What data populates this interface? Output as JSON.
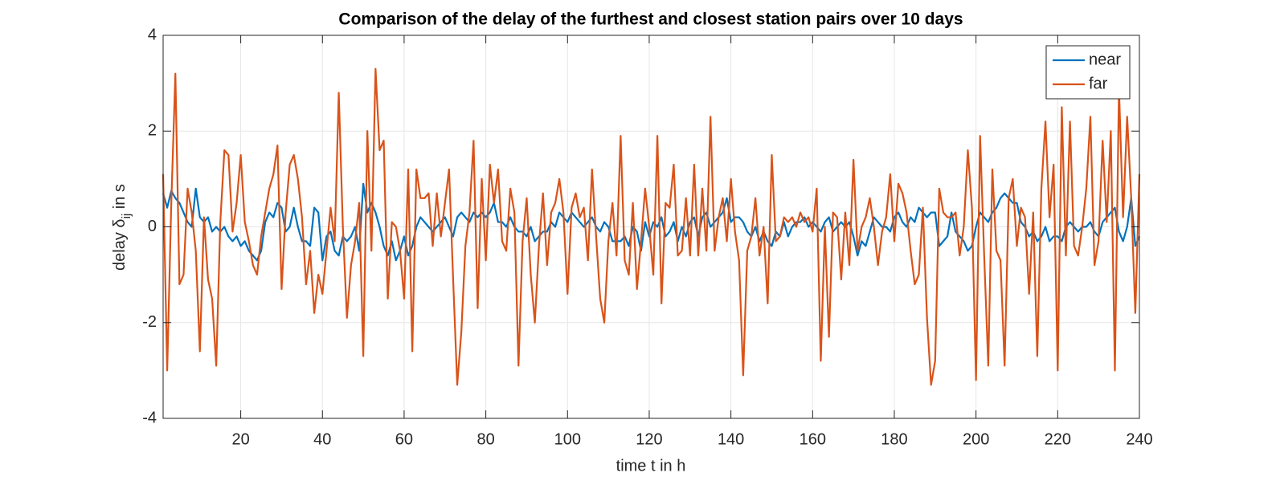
{
  "chart_data": {
    "type": "line",
    "title": "Comparison of the delay of the furthest and closest station pairs over 10 days",
    "xlabel": "time t in h",
    "ylabel_parts": [
      "delay δ",
      "ij",
      " in s"
    ],
    "xlim": [
      1,
      240
    ],
    "ylim": [
      -4,
      4
    ],
    "xticks": [
      20,
      40,
      60,
      80,
      100,
      120,
      140,
      160,
      180,
      200,
      220,
      240
    ],
    "yticks": [
      -4,
      -2,
      0,
      2,
      4
    ],
    "grid": true,
    "legend": "northeast",
    "x": [
      1,
      2,
      3,
      4,
      5,
      6,
      7,
      8,
      9,
      10,
      11,
      12,
      13,
      14,
      15,
      16,
      17,
      18,
      19,
      20,
      21,
      22,
      23,
      24,
      25,
      26,
      27,
      28,
      29,
      30,
      31,
      32,
      33,
      34,
      35,
      36,
      37,
      38,
      39,
      40,
      41,
      42,
      43,
      44,
      45,
      46,
      47,
      48,
      49,
      50,
      51,
      52,
      53,
      54,
      55,
      56,
      57,
      58,
      59,
      60,
      61,
      62,
      63,
      64,
      65,
      66,
      67,
      68,
      69,
      70,
      71,
      72,
      73,
      74,
      75,
      76,
      77,
      78,
      79,
      80,
      81,
      82,
      83,
      84,
      85,
      86,
      87,
      88,
      89,
      90,
      91,
      92,
      93,
      94,
      95,
      96,
      97,
      98,
      99,
      100,
      101,
      102,
      103,
      104,
      105,
      106,
      107,
      108,
      109,
      110,
      111,
      112,
      113,
      114,
      115,
      116,
      117,
      118,
      119,
      120,
      121,
      122,
      123,
      124,
      125,
      126,
      127,
      128,
      129,
      130,
      131,
      132,
      133,
      134,
      135,
      136,
      137,
      138,
      139,
      140,
      141,
      142,
      143,
      144,
      145,
      146,
      147,
      148,
      149,
      150,
      151,
      152,
      153,
      154,
      155,
      156,
      157,
      158,
      159,
      160,
      161,
      162,
      163,
      164,
      165,
      166,
      167,
      168,
      169,
      170,
      171,
      172,
      173,
      174,
      175,
      176,
      177,
      178,
      179,
      180,
      181,
      182,
      183,
      184,
      185,
      186,
      187,
      188,
      189,
      190,
      191,
      192,
      193,
      194,
      195,
      196,
      197,
      198,
      199,
      200,
      201,
      202,
      203,
      204,
      205,
      206,
      207,
      208,
      209,
      210,
      211,
      212,
      213,
      214,
      215,
      216,
      217,
      218,
      219,
      220,
      221,
      222,
      223,
      224,
      225,
      226,
      227,
      228,
      229,
      230,
      231,
      232,
      233,
      234,
      235,
      236,
      237,
      238,
      239,
      240
    ],
    "series": [
      {
        "name": "near",
        "color": "#0072BD",
        "values": [
          0.7,
          0.4,
          0.75,
          0.6,
          0.5,
          0.3,
          0.1,
          0.0,
          0.8,
          0.2,
          0.1,
          0.2,
          -0.1,
          0.0,
          -0.1,
          0.0,
          -0.2,
          -0.3,
          -0.2,
          -0.4,
          -0.3,
          -0.5,
          -0.6,
          -0.7,
          -0.5,
          0.1,
          0.3,
          0.2,
          0.5,
          0.4,
          -0.1,
          0.0,
          0.4,
          0.0,
          -0.3,
          -0.3,
          -0.4,
          0.4,
          0.3,
          -0.7,
          -0.2,
          -0.1,
          -0.5,
          -0.6,
          -0.2,
          -0.3,
          -0.2,
          0.0,
          -0.5,
          0.9,
          0.3,
          0.5,
          0.3,
          0.0,
          -0.4,
          -0.6,
          -0.3,
          -0.7,
          -0.5,
          -0.2,
          -0.6,
          -0.4,
          0.0,
          0.2,
          0.1,
          0.0,
          -0.1,
          0.0,
          0.1,
          0.2,
          0.0,
          -0.2,
          0.2,
          0.3,
          0.2,
          0.1,
          0.3,
          0.2,
          0.3,
          0.2,
          0.3,
          0.5,
          0.1,
          0.1,
          0.0,
          0.2,
          0.0,
          -0.1,
          -0.1,
          -0.2,
          0.0,
          -0.3,
          -0.2,
          -0.1,
          -0.1,
          0.1,
          0.0,
          0.3,
          0.2,
          0.1,
          0.3,
          0.2,
          0.1,
          0.0,
          0.1,
          0.2,
          0.0,
          -0.1,
          0.1,
          0.0,
          -0.3,
          -0.3,
          -0.3,
          -0.2,
          -0.4,
          0.0,
          -0.1,
          -0.5,
          0.1,
          -0.2,
          0.1,
          0.0,
          0.2,
          -0.2,
          -0.1,
          0.1,
          -0.3,
          0.0,
          -0.2,
          0.1,
          0.2,
          -0.2,
          0.2,
          0.3,
          0.0,
          0.1,
          0.2,
          0.3,
          0.6,
          0.1,
          0.2,
          0.2,
          0.1,
          -0.1,
          -0.2,
          0.0,
          -0.3,
          -0.1,
          -0.3,
          -0.4,
          -0.1,
          -0.2,
          0.1,
          -0.2,
          0.0,
          0.1,
          0.1,
          0.2,
          0.0,
          0.1,
          0.0,
          -0.1,
          0.1,
          0.2,
          -0.1,
          0.0,
          0.1,
          0.0,
          0.1,
          -0.2,
          -0.6,
          -0.3,
          -0.4,
          -0.1,
          0.2,
          0.1,
          0.0,
          0.0,
          -0.1,
          0.2,
          0.3,
          0.1,
          0.0,
          0.2,
          0.1,
          0.4,
          0.3,
          0.2,
          0.3,
          0.3,
          -0.4,
          -0.3,
          -0.2,
          0.3,
          -0.1,
          -0.2,
          -0.3,
          -0.5,
          -0.4,
          0.0,
          0.3,
          0.2,
          0.1,
          0.3,
          0.4,
          0.6,
          0.7,
          0.6,
          0.5,
          0.5,
          0.1,
          0.0,
          -0.2,
          -0.1,
          -0.3,
          -0.2,
          0.0,
          -0.3,
          -0.2,
          -0.2,
          -0.3,
          0.0,
          0.1,
          0.0,
          -0.1,
          0.0,
          0.0,
          0.1,
          -0.1,
          -0.2,
          0.1,
          0.2,
          0.3,
          0.4,
          -0.1,
          -0.3,
          0.0,
          0.6,
          -0.4,
          -0.2
        ]
      },
      {
        "name": "far",
        "color": "#D95319",
        "values": [
          1.1,
          -3.0,
          0.5,
          3.2,
          -1.2,
          -1.0,
          0.8,
          0.3,
          -0.5,
          -2.6,
          0.2,
          -1.1,
          -1.5,
          -2.9,
          0.1,
          1.6,
          1.5,
          -0.1,
          0.5,
          1.5,
          0.1,
          -0.3,
          -0.8,
          -1.0,
          -0.2,
          0.3,
          0.8,
          1.1,
          1.7,
          -1.3,
          0.3,
          1.3,
          1.5,
          1.0,
          0.2,
          -1.2,
          -0.5,
          -1.8,
          -1.0,
          -1.4,
          -0.5,
          0.4,
          -0.3,
          2.8,
          0.0,
          -1.9,
          -0.8,
          -0.3,
          0.5,
          -2.7,
          2.0,
          -0.5,
          3.3,
          1.6,
          1.8,
          -1.5,
          0.1,
          0.0,
          -0.5,
          -1.5,
          1.2,
          -2.6,
          1.2,
          0.6,
          0.6,
          0.7,
          -0.4,
          0.7,
          -0.2,
          0.5,
          1.2,
          -1.1,
          -3.3,
          -2.2,
          -0.4,
          0.3,
          1.8,
          -1.7,
          1.0,
          -0.7,
          1.3,
          0.5,
          1.2,
          -0.3,
          -0.5,
          0.8,
          0.3,
          -2.9,
          -0.3,
          0.6,
          -1.0,
          -2.0,
          -0.4,
          0.7,
          -0.8,
          0.3,
          0.5,
          1.0,
          0.3,
          -1.4,
          0.4,
          0.7,
          0.2,
          0.4,
          -0.7,
          1.2,
          -0.2,
          -1.5,
          -2.0,
          -0.3,
          0.5,
          -0.6,
          1.9,
          -0.7,
          -1.0,
          0.5,
          -1.3,
          -0.3,
          0.8,
          0.0,
          -1.0,
          1.9,
          -1.6,
          0.5,
          0.4,
          1.3,
          -0.6,
          -0.5,
          0.6,
          -0.6,
          1.3,
          -0.6,
          0.8,
          -0.5,
          2.3,
          -0.5,
          0.2,
          0.6,
          -0.3,
          1.0,
          -0.1,
          -0.7,
          -3.1,
          -0.5,
          -0.2,
          0.6,
          -0.6,
          0.0,
          -1.6,
          1.5,
          -0.3,
          -0.2,
          0.2,
          0.1,
          0.2,
          0.0,
          0.3,
          0.1,
          0.2,
          -0.1,
          0.8,
          -2.8,
          0.0,
          -2.3,
          0.3,
          0.2,
          -1.1,
          0.3,
          -0.8,
          1.4,
          -0.5,
          0.0,
          0.2,
          0.6,
          0.0,
          -0.8,
          -0.1,
          0.2,
          1.1,
          -0.3,
          0.9,
          0.7,
          0.3,
          -0.5,
          -1.2,
          -1.0,
          0.4,
          -1.9,
          -3.3,
          -2.8,
          0.8,
          0.3,
          0.2,
          0.2,
          0.3,
          -0.6,
          0.0,
          1.6,
          0.4,
          -3.2,
          1.9,
          -0.6,
          -2.9,
          1.2,
          -0.5,
          -0.7,
          -2.9,
          0.6,
          1.0,
          -0.4,
          0.4,
          0.2,
          -1.4,
          0.3,
          -2.7,
          0.8,
          2.2,
          0.2,
          1.3,
          -3.0,
          2.5,
          -0.6,
          2.2,
          -0.4,
          -0.6,
          0.0,
          0.8,
          2.3,
          -0.8,
          -0.3,
          1.8,
          0.1,
          2.0,
          -3.0,
          2.9,
          0.2,
          2.3,
          0.6,
          -1.8,
          1.1
        ]
      }
    ]
  }
}
